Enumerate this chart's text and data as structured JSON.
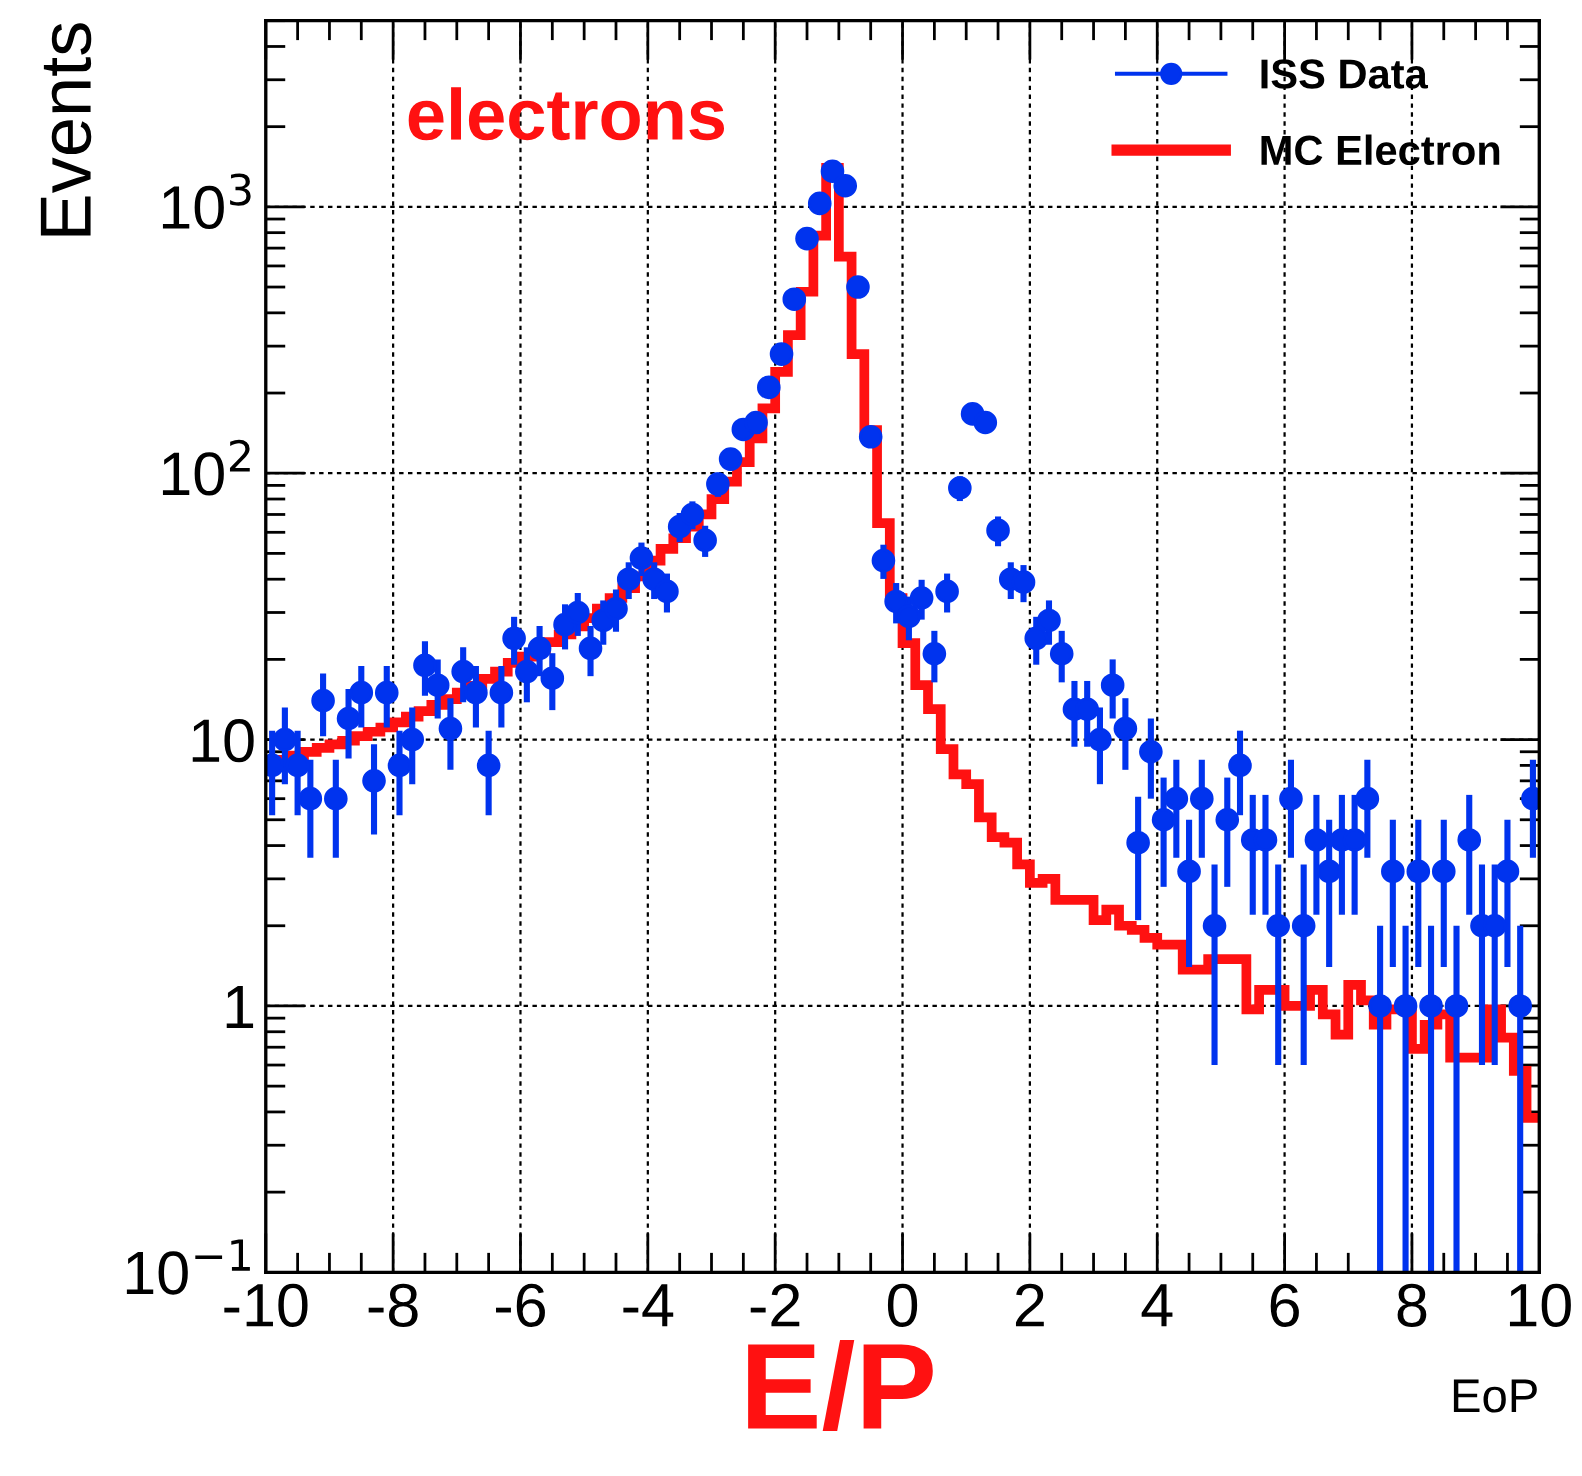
{
  "chart_data": {
    "type": "scatter",
    "xlabel": "EoP",
    "ylabel": "Events",
    "annotations": [
      "electrons",
      "E/P"
    ],
    "log": "y",
    "grid": true,
    "legend": "top right",
    "xlim": [
      -10,
      10
    ],
    "xticks": [
      -10,
      -8,
      -6,
      -4,
      -2,
      0,
      2,
      4,
      6,
      8,
      10
    ],
    "ylim": [
      0.1,
      5000
    ],
    "yticks": [
      {
        "value": 0.1,
        "label": "10$^{−1}$"
      },
      1,
      10,
      {
        "value": 100,
        "label": "10$^{2}$"
      },
      {
        "value": 1000,
        "label": "10$^{3}$"
      }
    ],
    "series": [
      {
        "name": "ISS Data",
        "color": "#0033ee",
        "marker": "circle",
        "x": [
          -9.9,
          -9.7,
          -9.5,
          -9.3,
          -9.1,
          -8.9,
          -8.7,
          -8.5,
          -8.3,
          -8.1,
          -7.9,
          -7.7,
          -7.5,
          -7.3,
          -7.1,
          -6.9,
          -6.7,
          -6.5,
          -6.3,
          -6.1,
          -5.9,
          -5.7,
          -5.5,
          -5.3,
          -5.1,
          -4.9,
          -4.7,
          -4.5,
          -4.3,
          -4.1,
          -3.9,
          -3.7,
          -3.5,
          -3.3,
          -3.1,
          -2.9,
          -2.7,
          -2.5,
          -2.3,
          -2.1,
          -1.9,
          -1.7,
          -1.5,
          -1.3,
          -1.1,
          -0.9,
          -0.7,
          -0.5,
          -0.3,
          -0.1,
          0.1,
          0.3,
          0.5,
          0.7,
          0.9,
          1.1,
          1.3,
          1.5,
          1.7,
          1.9,
          2.1,
          2.3,
          2.5,
          2.7,
          2.9,
          3.1,
          3.3,
          3.5,
          3.7,
          3.9,
          4.1,
          4.3,
          4.5,
          4.7,
          4.9,
          5.1,
          5.3,
          5.5,
          5.7,
          5.9,
          6.1,
          6.3,
          6.5,
          6.7,
          6.9,
          7.1,
          7.3,
          7.5,
          7.7,
          7.9,
          8.1,
          8.3,
          8.5,
          8.7,
          8.9,
          9.1,
          9.3,
          9.5,
          9.7,
          9.9
        ],
        "values": [
          8,
          10,
          8,
          6,
          14,
          6,
          12,
          15,
          7,
          15,
          8,
          10,
          19,
          16,
          11,
          18,
          15,
          8,
          15,
          24,
          18,
          22,
          17,
          27,
          30,
          22,
          28,
          31,
          40,
          48,
          40,
          36,
          63,
          70,
          56,
          91,
          113,
          146,
          155,
          210,
          280,
          450,
          760,
          1030,
          1360,
          1200,
          500,
          137,
          47,
          33,
          29,
          34,
          21,
          36,
          88,
          167,
          155,
          61,
          40,
          39,
          24,
          28,
          21,
          13,
          13,
          10,
          16,
          11,
          4.1,
          9,
          5,
          6,
          3.2,
          6,
          2.0,
          5,
          8,
          4.2,
          4.2,
          2.0,
          6,
          2.0,
          4.2,
          3.2,
          4.2,
          4.2,
          6,
          1,
          3.2,
          1,
          3.2,
          1,
          3.2,
          1,
          4.2,
          2.0,
          2.0,
          3.2,
          1,
          6
        ],
        "errors": [
          2.8,
          3.2,
          2.8,
          2.4,
          3.7,
          2.4,
          3.5,
          3.9,
          2.6,
          3.9,
          2.8,
          3.2,
          4.4,
          4,
          3.3,
          4.2,
          3.9,
          2.8,
          3.9,
          4.9,
          4.2,
          4.7,
          4.1,
          5.2,
          5.5,
          4.7,
          5.3,
          5.6,
          6.3,
          6.9,
          6.3,
          6,
          7.9,
          8.4,
          7.5,
          9.5,
          10.6,
          12.1,
          12.4,
          14.5,
          16.7,
          21.2,
          27.6,
          32,
          36.9,
          34.6,
          22.4,
          11.7,
          6.9,
          5.7,
          5.4,
          5.8,
          4.6,
          6,
          9.4,
          12.9,
          12.4,
          7.8,
          6.3,
          6.2,
          4.9,
          5.3,
          4.6,
          3.6,
          3.6,
          3.2,
          4,
          3.3,
          2,
          3,
          2.2,
          2.4,
          1.8,
          2.4,
          1.4,
          2.2,
          2.8,
          2,
          2,
          1.4,
          2.4,
          1.4,
          2,
          1.8,
          2,
          2,
          2.4,
          [
            0.1,
            2
          ],
          1.8,
          [
            0.1,
            2
          ],
          1.8,
          [
            0.1,
            2
          ],
          1.8,
          [
            0.1,
            2
          ],
          2,
          1.4,
          1.4,
          1.8,
          [
            0.1,
            2
          ],
          2.4
        ]
      },
      {
        "name": "MC Electron",
        "type": "histogram",
        "color": "#ff1111",
        "bins": [
          -10,
          -9.8,
          -9.6,
          -9.4,
          -9.2,
          -9,
          -8.8,
          -8.6,
          -8.4,
          -8.2,
          -8,
          -7.8,
          -7.6,
          -7.4,
          -7.2,
          -7,
          -6.8,
          -6.6,
          -6.4,
          -6.2,
          -6,
          -5.8,
          -5.6,
          -5.4,
          -5.2,
          -5,
          -4.8,
          -4.6,
          -4.4,
          -4.2,
          -4,
          -3.8,
          -3.6,
          -3.4,
          -3.2,
          -3,
          -2.8,
          -2.6,
          -2.4,
          -2.2,
          -2,
          -1.8,
          -1.6,
          -1.4,
          -1.2,
          -1,
          -0.8,
          -0.6,
          -0.4,
          -0.2,
          0,
          0.2,
          0.4,
          0.6,
          0.8,
          1,
          1.2,
          1.4,
          1.6,
          1.8,
          2,
          2.2,
          2.4,
          2.6,
          2.8,
          3,
          3.2,
          3.4,
          3.6,
          3.8,
          4,
          4.2,
          4.4,
          4.6,
          4.8,
          5,
          5.2,
          5.4,
          5.6,
          5.8,
          6,
          6.2,
          6.4,
          6.6,
          6.8,
          7,
          7.2,
          7.4,
          7.6,
          7.8,
          8,
          8.2,
          8.4,
          8.6,
          8.8,
          9,
          9.2,
          9.4,
          9.6,
          9.8,
          10
        ],
        "values": [
          8.2,
          8.4,
          8.7,
          9.0,
          9.3,
          9.6,
          9.9,
          10.3,
          10.7,
          11.1,
          11.6,
          12.2,
          12.8,
          13.5,
          14.2,
          15.0,
          15.9,
          16.9,
          18.0,
          19.4,
          20.5,
          21.8,
          23.2,
          24.8,
          26.6,
          28.6,
          31,
          34,
          37,
          41,
          47,
          52,
          57,
          63,
          70,
          80,
          93,
          110,
          135,
          175,
          240,
          330,
          480,
          780,
          1400,
          650,
          280,
          145,
          65,
          34,
          23,
          16,
          13,
          9.2,
          7.4,
          6.8,
          5.1,
          4.3,
          4.1,
          3.4,
          2.9,
          3.0,
          2.5,
          2.5,
          2.5,
          2.1,
          2.3,
          2.0,
          1.93,
          1.8,
          1.7,
          1.7,
          1.37,
          1.37,
          1.5,
          1.5,
          1.5,
          0.97,
          1.15,
          1.15,
          1.0,
          1.0,
          1.15,
          0.93,
          0.78,
          1.2,
          1.05,
          0.85,
          0.97,
          0.97,
          0.69,
          0.85,
          0.93,
          0.64,
          0.64,
          0.64,
          0.97,
          0.76,
          0.57,
          0.38
        ]
      }
    ]
  }
}
